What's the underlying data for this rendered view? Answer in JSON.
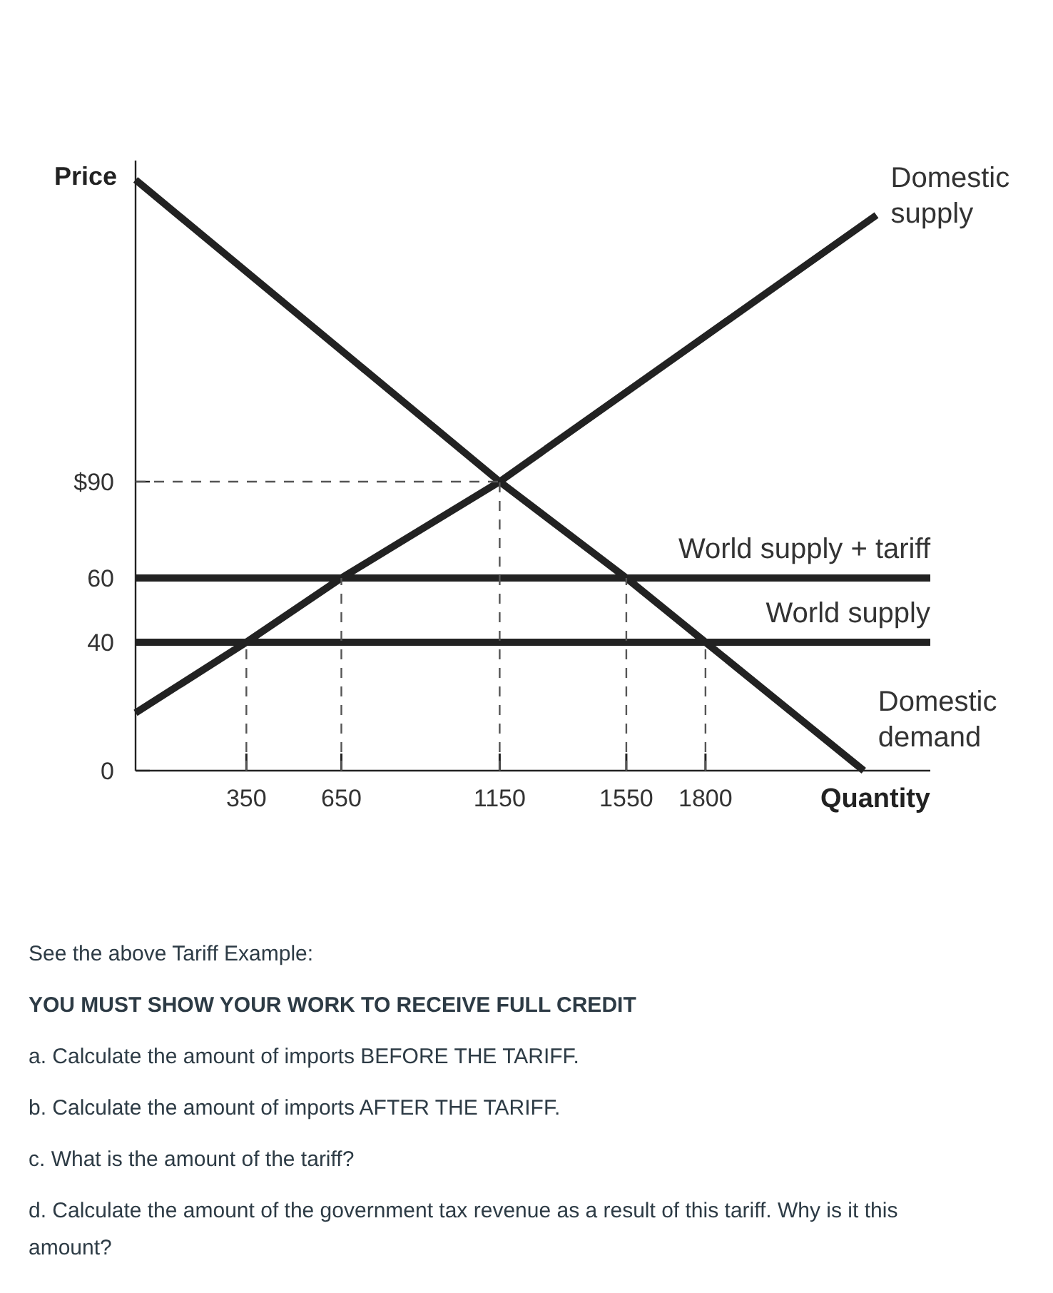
{
  "chart_data": {
    "type": "line",
    "ylabel": "Price",
    "xlabel": "Quantity",
    "xlim": [
      0,
      2510
    ],
    "ylim": [
      0,
      190
    ],
    "xticks": [
      350,
      650,
      1150,
      1550,
      1800
    ],
    "yticks": [
      {
        "value": 0,
        "label": "0"
      },
      40,
      60,
      {
        "value": 90,
        "label": "$90"
      }
    ],
    "grid": false,
    "marker": "none",
    "series": [
      {
        "name": "Domestic supply",
        "color": "#222222",
        "x": [
          0,
          350,
          650,
          1150,
          2340
        ],
        "values": [
          18,
          40,
          60,
          90,
          173
        ]
      },
      {
        "name": "Domestic demand",
        "color": "#222222",
        "x": [
          0,
          1150,
          1550,
          1800,
          2300
        ],
        "values": [
          184,
          90,
          60,
          40,
          0
        ]
      },
      {
        "name": "World supply + tariff",
        "color": "#222222",
        "x": [
          0,
          2510
        ],
        "values": [
          60,
          60
        ]
      },
      {
        "name": "World supply",
        "color": "#222222",
        "x": [
          0,
          2510
        ],
        "values": [
          40,
          40
        ]
      },
      {
        "color": "#555555",
        "line_style": "dashed",
        "x": [
          0,
          1150
        ],
        "values": [
          90,
          90
        ]
      },
      {
        "color": "#555555",
        "line_style": "dashed",
        "x": [
          350,
          350
        ],
        "values": [
          0,
          40
        ]
      },
      {
        "color": "#555555",
        "line_style": "dashed",
        "x": [
          650,
          650
        ],
        "values": [
          0,
          60
        ]
      },
      {
        "color": "#555555",
        "line_style": "dashed",
        "x": [
          1150,
          1150
        ],
        "values": [
          0,
          90
        ]
      },
      {
        "color": "#555555",
        "line_style": "dashed",
        "x": [
          1550,
          1550
        ],
        "values": [
          0,
          60
        ]
      },
      {
        "color": "#555555",
        "line_style": "dashed",
        "x": [
          1800,
          1800
        ],
        "values": [
          0,
          40
        ]
      }
    ],
    "annotations": [
      "See the above Tariff Example:",
      "YOU MUST SHOW YOUR WORK TO RECEIVE FULL CREDIT",
      "a. Calculate the amount of imports BEFORE THE TARIFF.",
      "b. Calculate the amount of imports AFTER THE TARIFF.",
      "c. What is the amount of the tariff?",
      "d. Calculate the amount of the government tax revenue as a result of this tariff. Why is it this amount?"
    ]
  }
}
